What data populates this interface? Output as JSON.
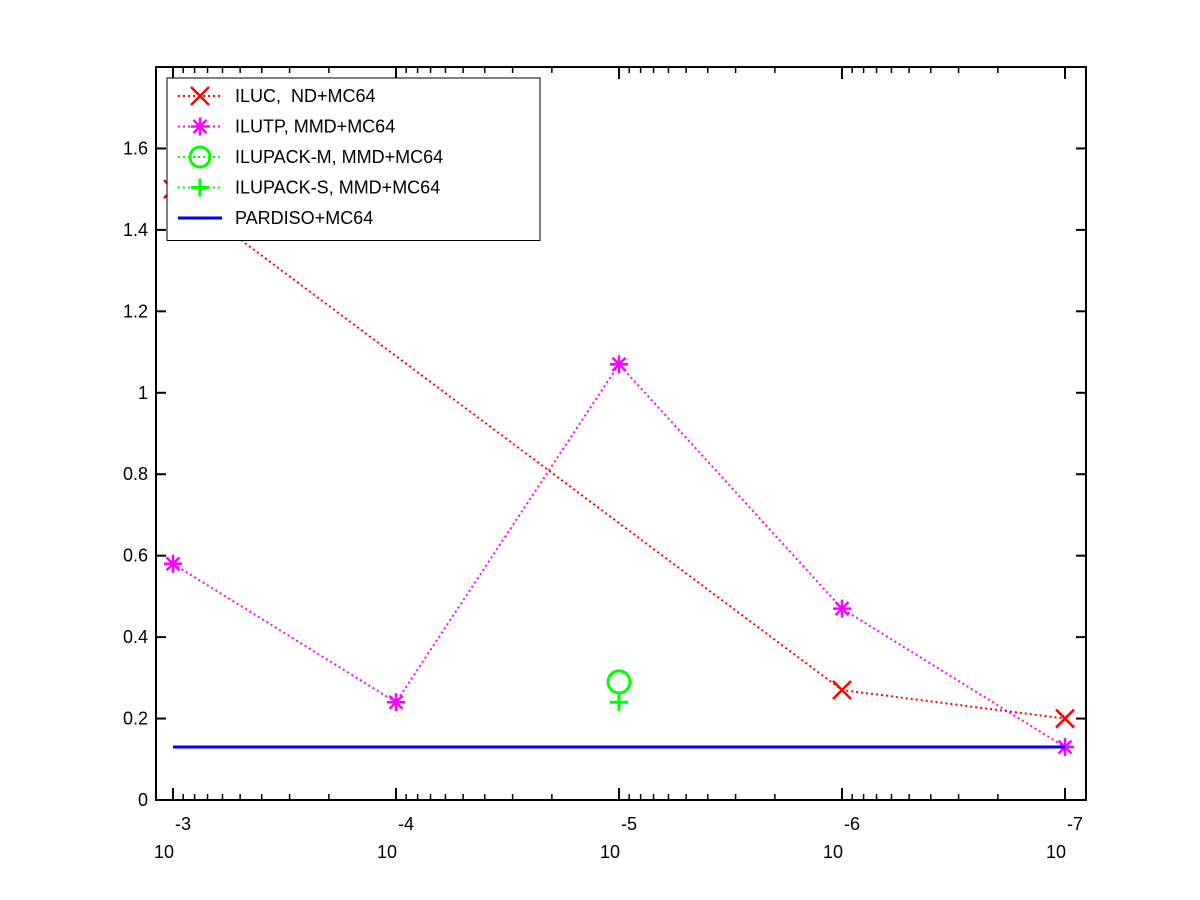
{
  "chart_data": {
    "type": "line",
    "title": "",
    "xlabel": "",
    "ylabel": "",
    "x_scale": "log",
    "x_reversed": true,
    "x": [
      0.001,
      0.0001,
      1e-05,
      1e-06,
      1e-07
    ],
    "xlim": [
      0.001,
      1e-07
    ],
    "ylim": [
      0,
      1.8
    ],
    "x_ticks": [
      {
        "value": 0.001,
        "base": "10",
        "exp": "-3"
      },
      {
        "value": 0.0001,
        "base": "10",
        "exp": "-4"
      },
      {
        "value": 1e-05,
        "base": "10",
        "exp": "-5"
      },
      {
        "value": 1e-06,
        "base": "10",
        "exp": "-6"
      },
      {
        "value": 1e-07,
        "base": "10",
        "exp": "-7"
      }
    ],
    "y_ticks": [
      {
        "value": 0,
        "label": "0"
      },
      {
        "value": 0.2,
        "label": "0.2"
      },
      {
        "value": 0.4,
        "label": "0.4"
      },
      {
        "value": 0.6,
        "label": "0.6"
      },
      {
        "value": 0.8,
        "label": "0.8"
      },
      {
        "value": 1.0,
        "label": "1"
      },
      {
        "value": 1.2,
        "label": "1.2"
      },
      {
        "value": 1.4,
        "label": "1.4"
      },
      {
        "value": 1.6,
        "label": "1.6"
      }
    ],
    "grid": false,
    "legend_position": "top-left",
    "series": [
      {
        "name": "ILUC,  ND+MC64",
        "color": "#ff0000",
        "marker": "x",
        "line": "dotted",
        "points": [
          [
            0.001,
            1.5
          ],
          [
            1e-06,
            0.27
          ],
          [
            1e-07,
            0.2
          ]
        ]
      },
      {
        "name": "ILUTP, MMD+MC64",
        "color": "#ff00ff",
        "marker": "asterisk",
        "line": "dotted",
        "points": [
          [
            0.001,
            0.58
          ],
          [
            0.0001,
            0.24
          ],
          [
            1e-05,
            1.07
          ],
          [
            1e-06,
            0.47
          ],
          [
            1e-07,
            0.13
          ]
        ]
      },
      {
        "name": "ILUPACK-M, MMD+MC64",
        "color": "#00ff00",
        "marker": "circle",
        "line": "dotted",
        "points": [
          [
            1e-05,
            0.29
          ]
        ]
      },
      {
        "name": "ILUPACK-S, MMD+MC64",
        "color": "#00ff00",
        "marker": "plus",
        "line": "dotted",
        "points": [
          [
            1e-05,
            0.24
          ]
        ]
      },
      {
        "name": "PARDISO+MC64",
        "color": "#0000ff",
        "marker": "none",
        "line": "solid",
        "points": [
          [
            0.001,
            0.13
          ],
          [
            1e-07,
            0.13
          ]
        ]
      }
    ]
  }
}
